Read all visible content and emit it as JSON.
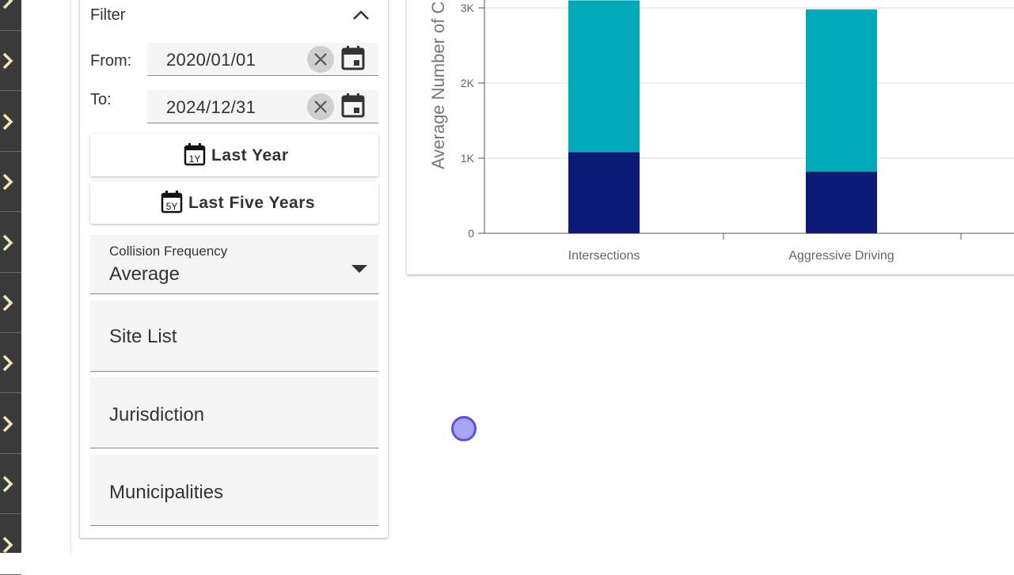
{
  "rail": {
    "items": [
      "expand",
      "expand",
      "expand",
      "expand",
      "expand",
      "expand",
      "expand",
      "expand",
      "expand",
      "expand"
    ]
  },
  "filter": {
    "title": "Filter",
    "from_label": "From:",
    "from_value": "2020/01/01",
    "to_label": "To:",
    "to_value": "2024/12/31",
    "last_year_label": "Last Year",
    "last_year_icon_text": "1Y",
    "last_five_years_label": "Last Five Years",
    "last_five_years_icon_text": "5Y",
    "frequency_caption": "Collision Frequency",
    "frequency_value": "Average",
    "site_list_label": "Site List",
    "jurisdiction_label": "Jurisdiction",
    "municipalities_label": "Municipalities"
  },
  "colors": {
    "series_dark": "#0d1a75",
    "series_light": "#00a9b8",
    "rail_bg": "#3a3a3a",
    "chevron": "#f2e7b8"
  },
  "chart_data": {
    "type": "bar",
    "stacked": true,
    "ylabel": "Average Number of C",
    "categories": [
      "Intersections",
      "Aggressive Driving"
    ],
    "y_ticks": [
      "0",
      "1K",
      "2K",
      "3K"
    ],
    "ylim": [
      0,
      3100
    ],
    "series": [
      {
        "values": [
          1080,
          820
        ],
        "color": "#0d1a75"
      },
      {
        "values": [
          2020,
          2160
        ],
        "color": "#00a9b8"
      }
    ]
  }
}
